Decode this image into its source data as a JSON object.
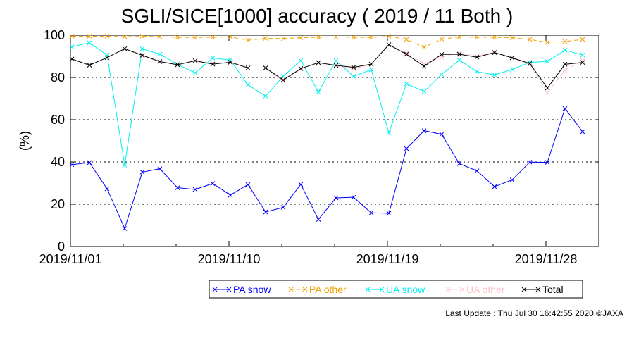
{
  "footer": {
    "last_update": "Last Update : Thu Jul 30 16:42:55 2020",
    "copyright": "©JAXA"
  },
  "chart_data": {
    "type": "line",
    "title": "SGLI/SICE[1000] accuracy ( 2019 / 11 Both )",
    "xlabel": "",
    "ylabel": "(%)",
    "ylim": [
      0,
      100
    ],
    "yticks": [
      0,
      20,
      40,
      60,
      80,
      100
    ],
    "x_start": "2019-11-01",
    "x_end": "2019-11-30",
    "x_step_days": 1,
    "xtick_labels": [
      "2019/11/01",
      "2019/11/10",
      "2019/11/19",
      "2019/11/28"
    ],
    "grid": "horizontal dotted at 20, 40, 60, 80",
    "legend_position": "bottom, below plot",
    "series": [
      {
        "name": "PA snow",
        "color": "#0000ff",
        "dash": "solid",
        "values": [
          38.7,
          39.7,
          27.3,
          8.5,
          35.2,
          36.8,
          27.8,
          27.0,
          29.8,
          24.3,
          29.3,
          16.3,
          18.5,
          29.4,
          12.8,
          23.0,
          23.3,
          15.9,
          15.7,
          46.3,
          54.8,
          53.1,
          39.2,
          35.8,
          28.3,
          31.5,
          39.9,
          39.8,
          65.3,
          54.3
        ]
      },
      {
        "name": "PA other",
        "color": "#f0a000",
        "dash": "dashed",
        "values": [
          99.5,
          99.5,
          99.5,
          99.3,
          99.5,
          99.3,
          99.0,
          98.9,
          99.0,
          99.2,
          97.6,
          98.5,
          98.4,
          98.8,
          99.0,
          99.2,
          99.0,
          98.9,
          99.5,
          98.0,
          94.3,
          98.1,
          99.2,
          99.0,
          99.0,
          98.8,
          98.0,
          96.6,
          97.0,
          98.0
        ]
      },
      {
        "name": "UA snow",
        "color": "#00f0f0",
        "dash": "solid",
        "values": [
          94.5,
          96.4,
          90.6,
          38.5,
          93.5,
          91.0,
          86.2,
          82.2,
          89.2,
          88.2,
          76.5,
          71.2,
          80.5,
          88.0,
          73.1,
          87.9,
          80.5,
          83.7,
          53.8,
          77.0,
          73.4,
          81.4,
          88.2,
          82.8,
          81.2,
          83.8,
          87.1,
          87.6,
          92.9,
          90.6
        ]
      },
      {
        "name": "UA other",
        "color": "#ffc0cb",
        "dash": "dashed",
        "values": [
          88.9,
          85.8,
          89.4,
          93.5,
          90.2,
          87.5,
          86.0,
          87.8,
          86.5,
          87.0,
          84.5,
          84.5,
          78.2,
          84.0,
          87.0,
          85.5,
          84.2,
          86.2,
          95.6,
          91.5,
          86.5,
          89.5,
          91.5,
          90.0,
          92.0,
          89.3,
          86.0,
          72.8,
          83.5,
          88.0
        ]
      },
      {
        "name": "Total",
        "color": "#000000",
        "dash": "solid",
        "values": [
          88.7,
          85.8,
          89.4,
          93.6,
          90.5,
          87.5,
          86.0,
          87.9,
          86.3,
          87.2,
          84.5,
          84.5,
          78.8,
          84.2,
          87.0,
          85.7,
          84.8,
          86.3,
          95.5,
          91.0,
          85.3,
          90.9,
          91.0,
          89.6,
          91.8,
          89.3,
          86.6,
          75.0,
          86.2,
          87.1
        ]
      }
    ]
  }
}
